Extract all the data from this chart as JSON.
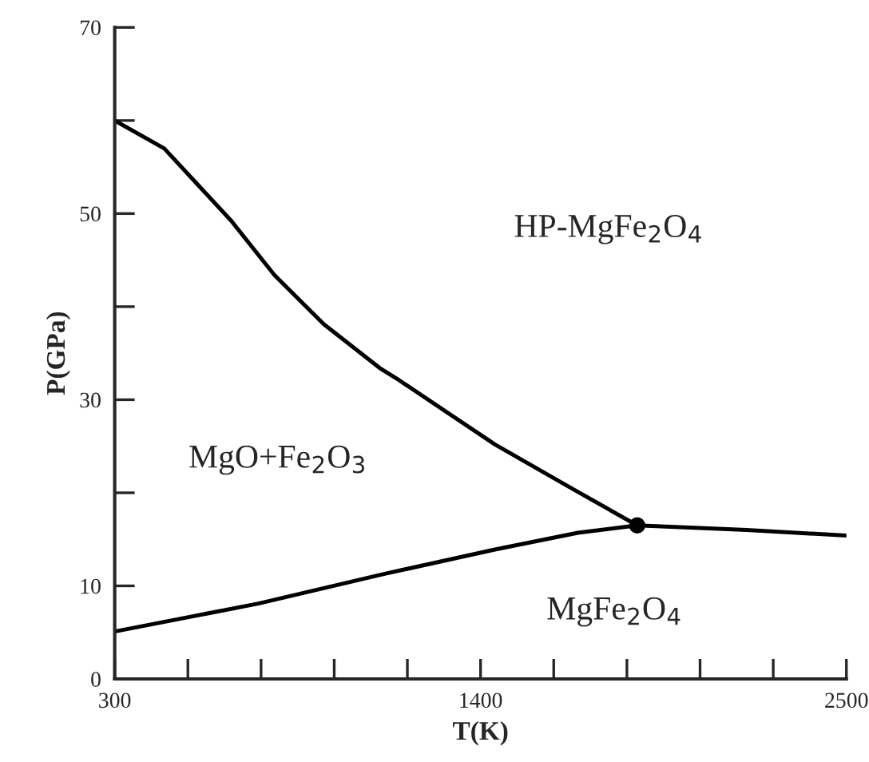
{
  "chart_data": {
    "type": "line",
    "xlabel": "T(K)",
    "ylabel": "P(GPa)",
    "annotations": [
      "HP-MgFe$_{2}$O$_{4}$",
      "MgO+Fe$_{2}$O$_{3}$",
      "MgFe$_{2}$O$_{4}$"
    ],
    "xlim": [
      300,
      2500
    ],
    "ylim": [
      0,
      70
    ],
    "xticks": [
      300,
      {
        "value": 520,
        "label": null
      },
      {
        "value": 740,
        "label": null
      },
      {
        "value": 960,
        "label": null
      },
      {
        "value": 1180,
        "label": null
      },
      1400,
      {
        "value": 1620,
        "label": null
      },
      {
        "value": 1840,
        "label": null
      },
      {
        "value": 2060,
        "label": null
      },
      {
        "value": 2280,
        "label": null
      },
      2500
    ],
    "yticks": [
      0,
      10,
      {
        "value": 20,
        "label": null
      },
      30,
      {
        "value": 40,
        "label": null
      },
      50,
      {
        "value": 60,
        "label": null
      },
      70
    ],
    "marker": "none",
    "line_style": "solid",
    "series": [
      {
        "color": "#000000",
        "x": [
          300,
          449,
          651,
          780,
          929,
          1097,
          1155,
          1443,
          1678,
          1871
        ],
        "values": [
          60,
          57,
          49.2,
          43.4,
          38.1,
          33.4,
          32.1,
          25.2,
          20.4,
          16.5
        ]
      },
      {
        "color": "#000000",
        "x": [
          300,
          732,
          1112,
          1443,
          1693,
          1871
        ],
        "values": [
          5.1,
          8.1,
          11.3,
          13.9,
          15.7,
          16.5
        ]
      },
      {
        "color": "#000000",
        "x": [
          1871,
          2200,
          2500
        ],
        "values": [
          16.5,
          16.0,
          15.4
        ]
      },
      {
        "type": "scatter",
        "marker": "circle",
        "color": "#000000",
        "x": [
          1871
        ],
        "values": [
          16.5
        ]
      }
    ]
  }
}
